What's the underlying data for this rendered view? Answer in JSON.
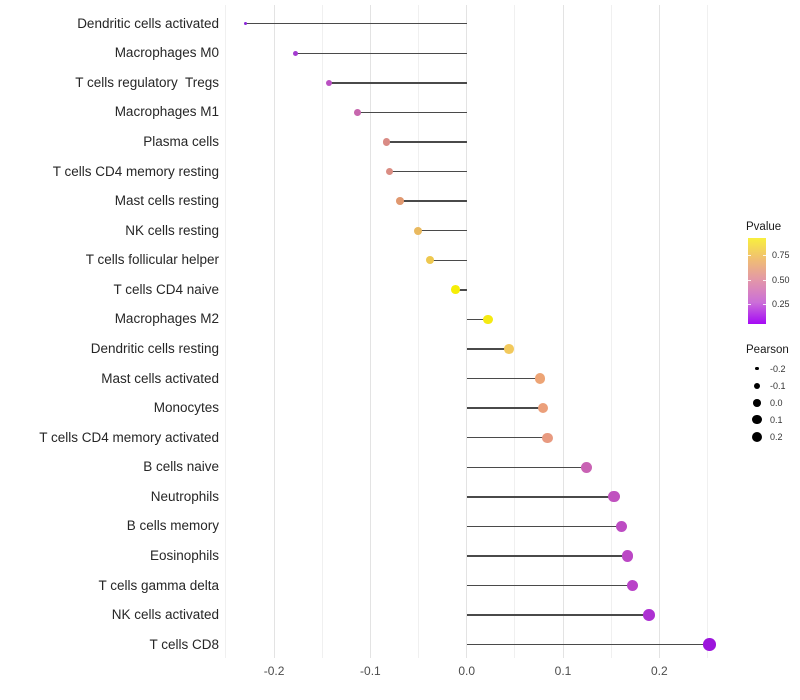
{
  "chart_data": {
    "type": "lollipop",
    "orientation": "horizontal",
    "title": "",
    "xlabel": "",
    "ylabel": "",
    "grid": "vertical-only",
    "baseline": 0,
    "x_axis": {
      "major_tick_labels": [
        "-0.2",
        "-0.1",
        "0.0",
        "0.1",
        "0.2"
      ],
      "major_tick_values": [
        -0.2,
        -0.1,
        0.0,
        0.1,
        0.2
      ],
      "minor_tick_values": [
        -0.25,
        -0.15,
        -0.05,
        0.05,
        0.15,
        0.25
      ],
      "range": [
        -0.247,
        0.261
      ]
    },
    "size_scale": {
      "domain": [
        -0.23,
        0.252
      ],
      "radius_range_px": [
        1.6,
        6.3
      ]
    },
    "stem_color": "#4a4a4a",
    "rows": [
      {
        "label": "Dendritic cells activated",
        "pearson": -0.23,
        "color": "#8b27d8"
      },
      {
        "label": "Macrophages M0",
        "pearson": -0.178,
        "color": "#a43bd0"
      },
      {
        "label": "T cells regulatory  Tregs",
        "pearson": -0.143,
        "color": "#ba50c2"
      },
      {
        "label": "Macrophages M1",
        "pearson": -0.113,
        "color": "#c767ae"
      },
      {
        "label": "Plasma cells",
        "pearson": -0.083,
        "color": "#d98b85"
      },
      {
        "label": "T cells CD4 memory resting",
        "pearson": -0.08,
        "color": "#da8d83"
      },
      {
        "label": "Mast cells resting",
        "pearson": -0.069,
        "color": "#e0986f"
      },
      {
        "label": "NK cells resting",
        "pearson": -0.051,
        "color": "#e9b95f"
      },
      {
        "label": "T cells follicular helper",
        "pearson": -0.038,
        "color": "#eec84f"
      },
      {
        "label": "T cells CD4 naive",
        "pearson": -0.012,
        "color": "#f6ee06"
      },
      {
        "label": "Macrophages M2",
        "pearson": 0.022,
        "color": "#f5ea12"
      },
      {
        "label": "Dendritic cells resting",
        "pearson": 0.044,
        "color": "#f2c95c"
      },
      {
        "label": "Mast cells activated",
        "pearson": 0.076,
        "color": "#eda475"
      },
      {
        "label": "Monocytes",
        "pearson": 0.079,
        "color": "#eb9f7a"
      },
      {
        "label": "T cells CD4 memory activated",
        "pearson": 0.084,
        "color": "#e89a80"
      },
      {
        "label": "B cells naive",
        "pearson": 0.124,
        "color": "#c962b4"
      },
      {
        "label": "Neutrophils",
        "pearson": 0.153,
        "color": "#c052bf"
      },
      {
        "label": "B cells memory",
        "pearson": 0.161,
        "color": "#bd4cc3"
      },
      {
        "label": "Eosinophils",
        "pearson": 0.167,
        "color": "#bb47c5"
      },
      {
        "label": "T cells gamma delta",
        "pearson": 0.172,
        "color": "#b942c8"
      },
      {
        "label": "NK cells activated",
        "pearson": 0.189,
        "color": "#ad31d2"
      },
      {
        "label": "T cells CD8",
        "pearson": 0.252,
        "color": "#9c15dc"
      }
    ]
  },
  "legends": {
    "pvalue": {
      "title": "Pvalue",
      "tick_labels": [
        "0.75",
        "0.50",
        "0.25"
      ],
      "tick_values": [
        0.75,
        0.5,
        0.25
      ],
      "bar_value_range": [
        0.05,
        0.92
      ],
      "gradient_bottom_to_top": [
        "#a50af5",
        "#cb6fd8",
        "#e295ab",
        "#f0bd74",
        "#f8ef3e"
      ]
    },
    "pearson": {
      "title": "Pearson",
      "dot_color": "#000000",
      "entries": [
        {
          "label": "-0.2",
          "value": -0.2
        },
        {
          "label": "-0.1",
          "value": -0.1
        },
        {
          "label": "0.0",
          "value": 0.0
        },
        {
          "label": "0.1",
          "value": 0.1
        },
        {
          "label": "0.2",
          "value": 0.2
        }
      ]
    }
  }
}
